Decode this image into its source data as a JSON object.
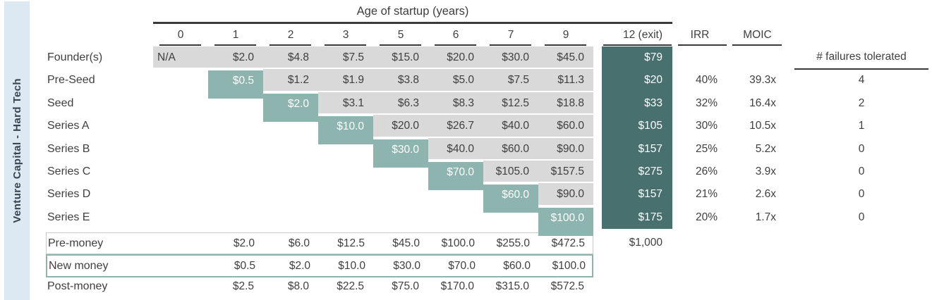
{
  "chart_data": {
    "type": "table",
    "group_label": "Venture Capital - Hard Tech",
    "title": "Age of startup (years)",
    "age_columns": [
      "0",
      "1",
      "2",
      "3",
      "5",
      "6",
      "7",
      "9"
    ],
    "exit_column": "12 (exit)",
    "irr_column": "IRR",
    "moic_column": "MOIC",
    "failures_column": "# failures tolerated",
    "rounds": [
      {
        "label": "Founder(s)",
        "diag": null,
        "values": [
          "N/A",
          "$2.0",
          "$4.8",
          "$7.5",
          "$15.0",
          "$20.0",
          "$30.0",
          "$45.0"
        ],
        "exit": "$79",
        "irr": "",
        "moic": "",
        "failures": ""
      },
      {
        "label": "Pre-Seed",
        "diag": 1,
        "values": [
          null,
          "$0.5",
          "$1.2",
          "$1.9",
          "$3.8",
          "$5.0",
          "$7.5",
          "$11.3"
        ],
        "exit": "$20",
        "irr": "40%",
        "moic": "39.3x",
        "failures": "4"
      },
      {
        "label": "Seed",
        "diag": 2,
        "values": [
          null,
          null,
          "$2.0",
          "$3.1",
          "$6.3",
          "$8.3",
          "$12.5",
          "$18.8"
        ],
        "exit": "$33",
        "irr": "32%",
        "moic": "16.4x",
        "failures": "2"
      },
      {
        "label": "Series A",
        "diag": 3,
        "values": [
          null,
          null,
          null,
          "$10.0",
          "$20.0",
          "$26.7",
          "$40.0",
          "$60.0"
        ],
        "exit": "$105",
        "irr": "30%",
        "moic": "10.5x",
        "failures": "1"
      },
      {
        "label": "Series B",
        "diag": 4,
        "values": [
          null,
          null,
          null,
          null,
          "$30.0",
          "$40.0",
          "$60.0",
          "$90.0"
        ],
        "exit": "$157",
        "irr": "25%",
        "moic": "5.2x",
        "failures": "0"
      },
      {
        "label": "Series C",
        "diag": 5,
        "values": [
          null,
          null,
          null,
          null,
          null,
          "$70.0",
          "$105.0",
          "$157.5"
        ],
        "exit": "$275",
        "irr": "26%",
        "moic": "3.9x",
        "failures": "0"
      },
      {
        "label": "Series D",
        "diag": 6,
        "values": [
          null,
          null,
          null,
          null,
          null,
          null,
          "$60.0",
          "$90.0"
        ],
        "exit": "$157",
        "irr": "21%",
        "moic": "2.6x",
        "failures": "0"
      },
      {
        "label": "Series E",
        "diag": 7,
        "values": [
          null,
          null,
          null,
          null,
          null,
          null,
          null,
          "$100.0"
        ],
        "exit": "$175",
        "irr": "20%",
        "moic": "1.7x",
        "failures": "0"
      }
    ],
    "summary": [
      {
        "label": "Pre-money",
        "box": "gray",
        "values": [
          null,
          "$2.0",
          "$6.0",
          "$12.5",
          "$45.0",
          "$100.0",
          "$255.0",
          "$472.5"
        ],
        "exit": "$1,000"
      },
      {
        "label": "New money",
        "box": "teal",
        "values": [
          null,
          "$0.5",
          "$2.0",
          "$10.0",
          "$30.0",
          "$70.0",
          "$60.0",
          "$100.0"
        ],
        "exit": ""
      },
      {
        "label": "Post-money",
        "box": "none",
        "values": [
          null,
          "$2.5",
          "$8.0",
          "$22.5",
          "$75.0",
          "$170.0",
          "$315.0",
          "$572.5"
        ],
        "exit": ""
      }
    ],
    "colors": {
      "sidebar_bg": "#dde9f2",
      "sidebar_text": "#36454f",
      "cell_gray": "#d9d9d9",
      "diagonal_teal": "#8db4ae",
      "exit_teal": "#47706f",
      "header_line": "#3a3a3a",
      "text_dark": "#3f3f3f",
      "pre_money_border": "#c9c9c9",
      "new_money_border": "#8fb4ae"
    }
  }
}
